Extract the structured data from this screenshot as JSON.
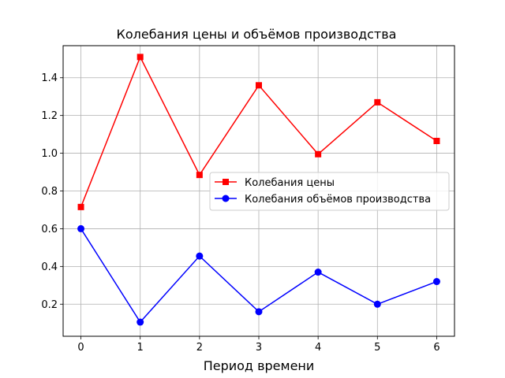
{
  "chart_data": {
    "type": "line",
    "title": "Колебания цены и объёмов производства",
    "xlabel": "Период времени",
    "ylabel": "",
    "x": [
      0,
      1,
      2,
      3,
      4,
      5,
      6
    ],
    "xlim": [
      -0.3,
      6.3
    ],
    "ylim": [
      0.03,
      1.57
    ],
    "xticks": [
      0,
      1,
      2,
      3,
      4,
      5,
      6
    ],
    "yticks": [
      0.2,
      0.4,
      0.6,
      0.8,
      1.0,
      1.2,
      1.4
    ],
    "ytick_labels": [
      "0.2",
      "0.4",
      "0.6",
      "0.8",
      "1.0",
      "1.2",
      "1.4"
    ],
    "grid": true,
    "legend_position": "center-right",
    "series": [
      {
        "name": "Колебания цены",
        "color": "#ff0000",
        "marker": "square",
        "values": [
          0.715,
          1.51,
          0.885,
          1.36,
          0.995,
          1.27,
          1.065
        ]
      },
      {
        "name": "Колебания объёмов производства",
        "color": "#0000ff",
        "marker": "circle",
        "values": [
          0.6,
          0.105,
          0.455,
          0.16,
          0.37,
          0.2,
          0.32
        ]
      }
    ]
  }
}
